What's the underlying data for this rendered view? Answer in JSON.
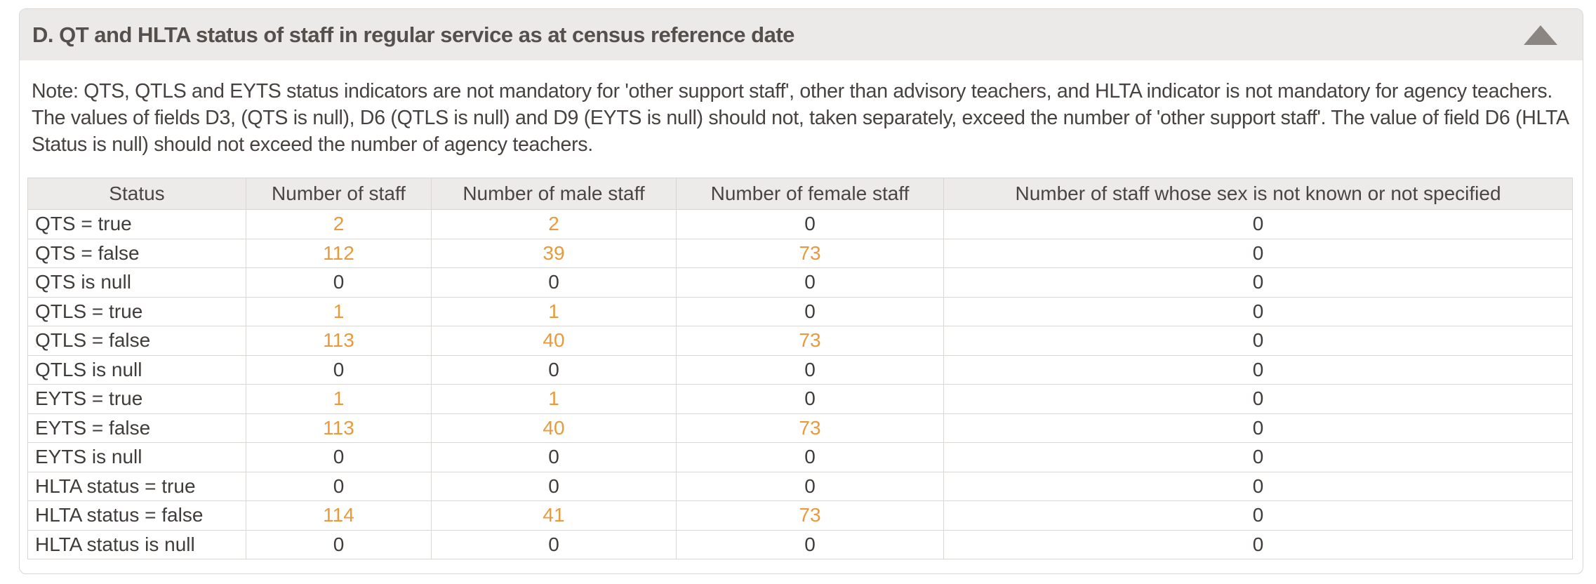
{
  "panel": {
    "title": "D. QT and HLTA status of staff in regular service as at census reference date",
    "collapse_icon": "triangle-up",
    "note": "Note: QTS, QTLS and EYTS status indicators are not mandatory for 'other support staff', other than advisory teachers, and HLTA indicator is not mandatory for agency teachers. The values of fields D3, (QTS is null), D6 (QTLS is null) and D9 (EYTS is null) should not, taken separately, exceed the number of 'other support staff'. The value of field D6 (HLTA Status is null) should not exceed the number of agency teachers."
  },
  "table": {
    "columns": [
      "Status",
      "Number of staff",
      "Number of male staff",
      "Number of female staff",
      "Number of staff whose sex is not known or not specified"
    ],
    "rows": [
      {
        "status": "QTS = true",
        "cells": [
          {
            "value": "2",
            "link": true
          },
          {
            "value": "2",
            "link": true
          },
          {
            "value": "0",
            "link": false
          },
          {
            "value": "0",
            "link": false
          }
        ]
      },
      {
        "status": "QTS = false",
        "cells": [
          {
            "value": "112",
            "link": true
          },
          {
            "value": "39",
            "link": true
          },
          {
            "value": "73",
            "link": true
          },
          {
            "value": "0",
            "link": false
          }
        ]
      },
      {
        "status": "QTS is null",
        "cells": [
          {
            "value": "0",
            "link": false
          },
          {
            "value": "0",
            "link": false
          },
          {
            "value": "0",
            "link": false
          },
          {
            "value": "0",
            "link": false
          }
        ]
      },
      {
        "status": "QTLS = true",
        "cells": [
          {
            "value": "1",
            "link": true
          },
          {
            "value": "1",
            "link": true
          },
          {
            "value": "0",
            "link": false
          },
          {
            "value": "0",
            "link": false
          }
        ]
      },
      {
        "status": "QTLS = false",
        "cells": [
          {
            "value": "113",
            "link": true
          },
          {
            "value": "40",
            "link": true
          },
          {
            "value": "73",
            "link": true
          },
          {
            "value": "0",
            "link": false
          }
        ]
      },
      {
        "status": "QTLS is null",
        "cells": [
          {
            "value": "0",
            "link": false
          },
          {
            "value": "0",
            "link": false
          },
          {
            "value": "0",
            "link": false
          },
          {
            "value": "0",
            "link": false
          }
        ]
      },
      {
        "status": "EYTS = true",
        "cells": [
          {
            "value": "1",
            "link": true
          },
          {
            "value": "1",
            "link": true
          },
          {
            "value": "0",
            "link": false
          },
          {
            "value": "0",
            "link": false
          }
        ]
      },
      {
        "status": "EYTS = false",
        "cells": [
          {
            "value": "113",
            "link": true
          },
          {
            "value": "40",
            "link": true
          },
          {
            "value": "73",
            "link": true
          },
          {
            "value": "0",
            "link": false
          }
        ]
      },
      {
        "status": "EYTS is null",
        "cells": [
          {
            "value": "0",
            "link": false
          },
          {
            "value": "0",
            "link": false
          },
          {
            "value": "0",
            "link": false
          },
          {
            "value": "0",
            "link": false
          }
        ]
      },
      {
        "status": "HLTA status = true",
        "cells": [
          {
            "value": "0",
            "link": false
          },
          {
            "value": "0",
            "link": false
          },
          {
            "value": "0",
            "link": false
          },
          {
            "value": "0",
            "link": false
          }
        ]
      },
      {
        "status": "HLTA status = false",
        "cells": [
          {
            "value": "114",
            "link": true
          },
          {
            "value": "41",
            "link": true
          },
          {
            "value": "73",
            "link": true
          },
          {
            "value": "0",
            "link": false
          }
        ]
      },
      {
        "status": "HLTA status is null",
        "cells": [
          {
            "value": "0",
            "link": false
          },
          {
            "value": "0",
            "link": false
          },
          {
            "value": "0",
            "link": false
          },
          {
            "value": "0",
            "link": false
          }
        ]
      }
    ]
  },
  "colors": {
    "link_orange": "#e89a3d",
    "header_bg": "#eceae8",
    "panel_border": "#d9d6d3",
    "title_text": "#56504d",
    "body_text": "#474240",
    "collapse_icon_gray": "#8b8682"
  }
}
